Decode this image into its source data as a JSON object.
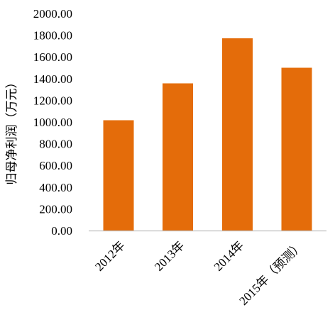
{
  "chart_data": {
    "type": "bar",
    "categories": [
      "2012年",
      "2013年",
      "2014年",
      "2015年（预测）"
    ],
    "values": [
      1015,
      1355,
      1770,
      1500
    ],
    "title": "",
    "xlabel": "",
    "ylabel": "归母净利润（万元）",
    "ylim": [
      0,
      2000
    ],
    "yticks": [
      "0.00",
      "200.00",
      "400.00",
      "600.00",
      "800.00",
      "1000.00",
      "1200.00",
      "1400.00",
      "1600.00",
      "1800.00",
      "2000.00"
    ],
    "bar_color": "#e46c0a",
    "grid": false,
    "legend": "none"
  }
}
